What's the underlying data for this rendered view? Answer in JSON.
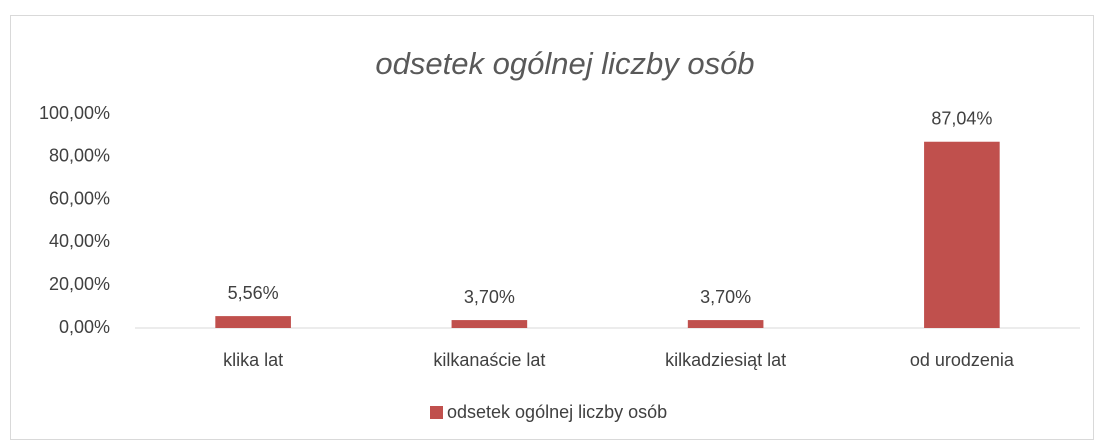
{
  "chart_data": {
    "type": "bar",
    "title": "odsetek ogólnej liczby osób",
    "categories": [
      "klika lat",
      "kilkanaście lat",
      "kilkadziesiąt lat",
      "od urodzenia"
    ],
    "series": [
      {
        "name": "odsetek ogólnej liczby osób",
        "color": "#c0504d",
        "values": [
          5.56,
          3.7,
          3.7,
          87.04
        ],
        "value_labels": [
          "5,56%",
          "3,70%",
          "3,70%",
          "87,04%"
        ]
      }
    ],
    "ylim": [
      0,
      100
    ],
    "yticks": [
      {
        "value": 0,
        "label": "0,00%"
      },
      {
        "value": 20,
        "label": "20,00%"
      },
      {
        "value": 40,
        "label": "40,00%"
      },
      {
        "value": 60,
        "label": "60,00%"
      },
      {
        "value": 80,
        "label": "80,00%"
      },
      {
        "value": 100,
        "label": "100,00%"
      }
    ],
    "grid": false,
    "legend": "bottom"
  }
}
